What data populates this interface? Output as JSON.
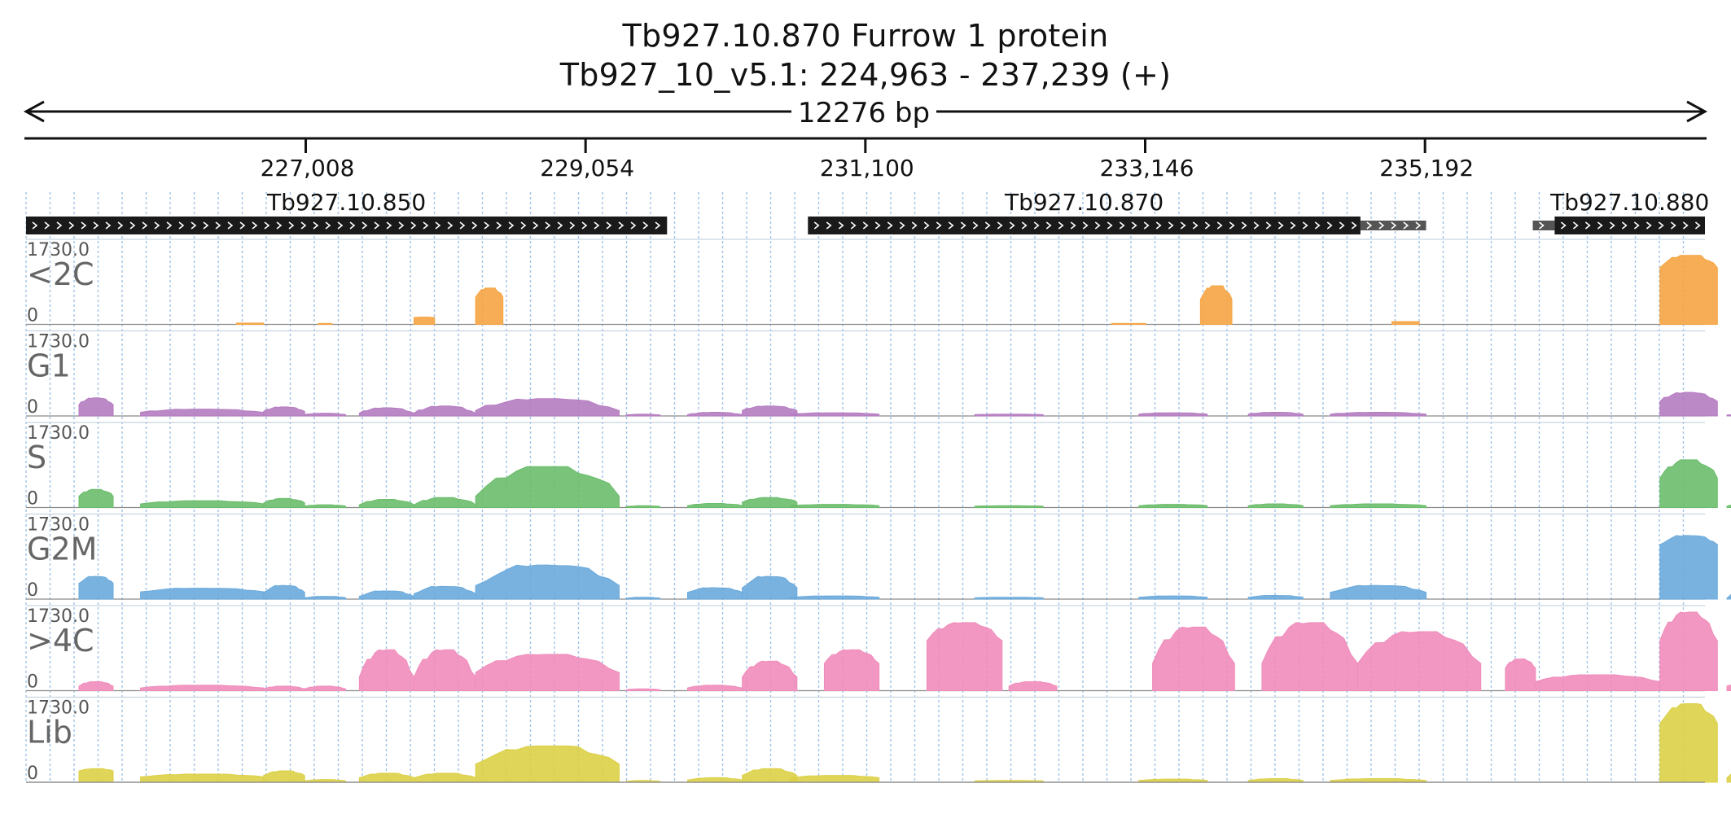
{
  "header": {
    "title": "Tb927.10.870  Furrow 1 protein",
    "subtitle": "Tb927_10_v5.1: 224,963 - 237,239 (+)",
    "span_label": "12276 bp"
  },
  "chart_data": {
    "type": "area",
    "title": "Tb927.10.870  Furrow 1 protein",
    "subtitle": "Tb927_10_v5.1: 224,963 - 237,239 (+)",
    "xlim": [
      224963,
      237239
    ],
    "x_ticks": [
      227008,
      229054,
      231100,
      233146,
      235192
    ],
    "x_tick_labels": [
      "227,008",
      "229,054",
      "231,100",
      "233,146",
      "235,192"
    ],
    "genes": [
      {
        "name": "Tb927.10.850",
        "start": 224963,
        "end": 229650,
        "utr5": [
          224963,
          225150
        ]
      },
      {
        "name": "Tb927.10.870",
        "start": 230680,
        "end": 234720,
        "utr3": [
          234720,
          235200
        ]
      },
      {
        "name": "Tb927.10.880",
        "start": 236140,
        "end": 237239,
        "utr5": [
          235980,
          236140
        ]
      }
    ],
    "y_max_label": "1730.0",
    "y_min_label": "0",
    "ylim": [
      0,
      1730
    ],
    "series": [
      {
        "name": "<2C",
        "color": "#f5a442",
        "segments": [
          [
            226500,
            226700,
            30,
            30
          ],
          [
            227100,
            227200,
            20,
            20
          ],
          [
            227800,
            227950,
            150,
            160
          ],
          [
            228250,
            228450,
            600,
            800
          ]
        ],
        "peaks": [
          [
            232900,
            233150,
            20,
            20
          ],
          [
            233550,
            233780,
            550,
            850
          ],
          [
            234950,
            235150,
            60,
            60
          ],
          [
            236910,
            237330,
            1250,
            1520
          ]
        ]
      },
      {
        "name": "G1",
        "color": "#b57cc1",
        "segments": [
          [
            225350,
            225600,
            250,
            400
          ],
          [
            225800,
            226700,
            80,
            150
          ],
          [
            226700,
            227000,
            100,
            200
          ],
          [
            227000,
            227300,
            30,
            60
          ],
          [
            227400,
            227800,
            60,
            180
          ],
          [
            227800,
            228250,
            60,
            220
          ],
          [
            228250,
            229300,
            120,
            380
          ],
          [
            229350,
            229600,
            20,
            40
          ],
          [
            229800,
            230200,
            30,
            80
          ],
          [
            230200,
            230600,
            120,
            220
          ]
        ],
        "peaks": [
          [
            230550,
            231200,
            40,
            70
          ],
          [
            231900,
            232400,
            30,
            40
          ],
          [
            233100,
            233600,
            40,
            70
          ],
          [
            233900,
            234300,
            40,
            80
          ],
          [
            234500,
            235200,
            40,
            80
          ],
          [
            236910,
            237330,
            320,
            520
          ],
          [
            237400,
            237680,
            20,
            30
          ]
        ]
      },
      {
        "name": "S",
        "color": "#6bbd6b",
        "segments": [
          [
            225350,
            225600,
            250,
            400
          ],
          [
            225800,
            226700,
            80,
            150
          ],
          [
            226700,
            227000,
            100,
            200
          ],
          [
            227000,
            227300,
            30,
            60
          ],
          [
            227400,
            227800,
            60,
            180
          ],
          [
            227800,
            228250,
            60,
            220
          ],
          [
            228250,
            229300,
            250,
            900
          ],
          [
            229350,
            229600,
            20,
            40
          ],
          [
            229800,
            230200,
            40,
            90
          ],
          [
            230200,
            230600,
            120,
            220
          ]
        ],
        "peaks": [
          [
            230550,
            231200,
            40,
            70
          ],
          [
            231900,
            232400,
            30,
            40
          ],
          [
            233100,
            233600,
            40,
            70
          ],
          [
            233900,
            234300,
            40,
            80
          ],
          [
            234500,
            235200,
            40,
            80
          ],
          [
            236910,
            237330,
            650,
            1050
          ],
          [
            237400,
            237680,
            30,
            80
          ]
        ]
      },
      {
        "name": "G2M",
        "color": "#6aaadc",
        "segments": [
          [
            225350,
            225600,
            350,
            500
          ],
          [
            225800,
            226700,
            160,
            240
          ],
          [
            226700,
            227000,
            150,
            300
          ],
          [
            227000,
            227300,
            30,
            60
          ],
          [
            227400,
            227800,
            60,
            180
          ],
          [
            227800,
            228250,
            120,
            280
          ],
          [
            228250,
            229300,
            300,
            750
          ],
          [
            229350,
            229600,
            20,
            40
          ],
          [
            229800,
            230200,
            150,
            250
          ],
          [
            230200,
            230600,
            250,
            500
          ]
        ],
        "peaks": [
          [
            230550,
            231200,
            40,
            70
          ],
          [
            231900,
            232400,
            30,
            40
          ],
          [
            233100,
            233600,
            40,
            70
          ],
          [
            233900,
            234300,
            40,
            80
          ],
          [
            234500,
            235200,
            150,
            300
          ],
          [
            236910,
            237330,
            1200,
            1400
          ],
          [
            237400,
            237680,
            20,
            250
          ]
        ]
      },
      {
        "name": ">4C",
        "color": "#f08cbb",
        "segments": [
          [
            225350,
            225600,
            100,
            200
          ],
          [
            225800,
            226700,
            60,
            120
          ],
          [
            226700,
            227000,
            40,
            100
          ],
          [
            227000,
            227300,
            40,
            100
          ],
          [
            227400,
            227800,
            300,
            900
          ],
          [
            227800,
            228250,
            300,
            900
          ],
          [
            228250,
            229300,
            400,
            800
          ],
          [
            229350,
            229600,
            20,
            40
          ],
          [
            229800,
            230200,
            60,
            120
          ],
          [
            230200,
            230600,
            300,
            650
          ]
        ],
        "peaks": [
          [
            230800,
            231200,
            600,
            900
          ],
          [
            231550,
            232100,
            1100,
            1500
          ],
          [
            232150,
            232500,
            100,
            200
          ],
          [
            233200,
            233800,
            600,
            1400
          ],
          [
            234000,
            234700,
            600,
            1500
          ],
          [
            234700,
            235600,
            600,
            1300
          ],
          [
            235780,
            236000,
            500,
            700
          ],
          [
            236000,
            236910,
            200,
            350
          ],
          [
            236910,
            237330,
            1100,
            1730
          ],
          [
            237400,
            237680,
            100,
            150
          ]
        ]
      },
      {
        "name": "Lib",
        "color": "#dcd046",
        "segments": [
          [
            225350,
            225600,
            250,
            300
          ],
          [
            225800,
            226700,
            120,
            180
          ],
          [
            226700,
            227000,
            150,
            250
          ],
          [
            227000,
            227300,
            30,
            60
          ],
          [
            227400,
            227800,
            100,
            200
          ],
          [
            227800,
            228250,
            100,
            200
          ],
          [
            228250,
            229300,
            400,
            800
          ],
          [
            229350,
            229600,
            20,
            40
          ],
          [
            229800,
            230200,
            50,
            100
          ],
          [
            230200,
            230600,
            150,
            300
          ]
        ],
        "peaks": [
          [
            230550,
            231200,
            100,
            150
          ],
          [
            231900,
            232400,
            30,
            40
          ],
          [
            233100,
            233600,
            40,
            70
          ],
          [
            233900,
            234300,
            40,
            80
          ],
          [
            234500,
            235200,
            40,
            80
          ],
          [
            236910,
            237330,
            1300,
            1730
          ],
          [
            237400,
            237680,
            100,
            300
          ]
        ]
      }
    ]
  }
}
